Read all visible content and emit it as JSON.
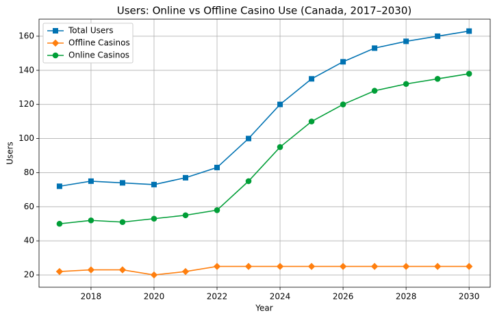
{
  "chart_data": {
    "type": "line",
    "title": "Users: Online vs Offline Casino Use (Canada, 2017–2030)",
    "x_label": "Year",
    "y_label": "Users",
    "x": [
      2017,
      2018,
      2019,
      2020,
      2021,
      2022,
      2023,
      2024,
      2025,
      2026,
      2027,
      2028,
      2029,
      2030
    ],
    "series": [
      {
        "name": "Total Users",
        "color": "#0072b2",
        "marker": "square",
        "values": [
          72,
          75,
          74,
          73,
          77,
          83,
          100,
          120,
          135,
          145,
          153,
          157,
          160,
          163
        ]
      },
      {
        "name": "Offline Casinos",
        "color": "#ff7f0e",
        "marker": "diamond",
        "values": [
          22,
          23,
          23,
          20,
          22,
          25,
          25,
          25,
          25,
          25,
          25,
          25,
          25,
          25
        ]
      },
      {
        "name": "Online Casinos",
        "color": "#009e37",
        "marker": "circle",
        "values": [
          50,
          52,
          51,
          53,
          55,
          58,
          75,
          95,
          110,
          120,
          128,
          132,
          135,
          138
        ]
      }
    ],
    "xlim": [
      2016.35,
      2030.67
    ],
    "xticks": [
      2018,
      2020,
      2022,
      2024,
      2026,
      2028,
      2030
    ],
    "ylim": [
      12.8,
      170
    ],
    "yticks": [
      20,
      40,
      60,
      80,
      100,
      120,
      140,
      160
    ],
    "grid": true,
    "legend": "upper-left"
  }
}
